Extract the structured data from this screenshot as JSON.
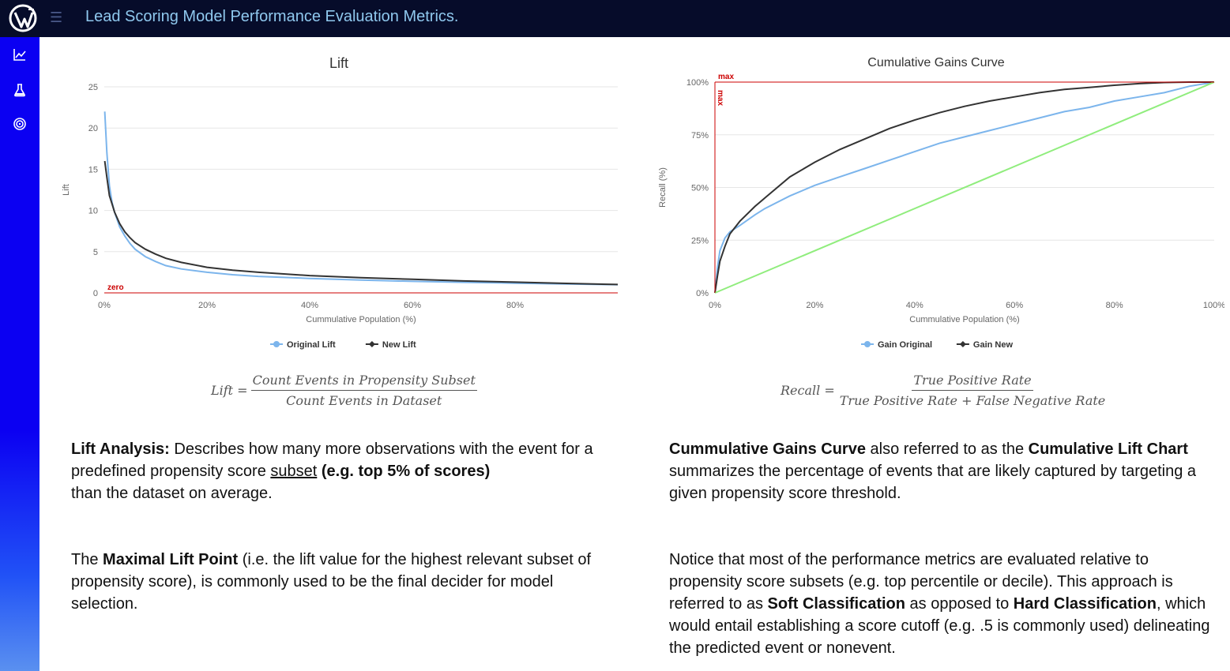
{
  "header": {
    "title": "Lead Scoring Model Performance Evaluation Metrics.",
    "menu_icon": "hamburger-menu-icon",
    "logo_icon": "app-logo-icon"
  },
  "sidebar": {
    "items": [
      {
        "icon": "line-chart-icon"
      },
      {
        "icon": "flask-icon"
      },
      {
        "icon": "target-icon"
      }
    ]
  },
  "colors": {
    "topbar": "#060c2a",
    "sidebar": "#0b00f2",
    "title": "#8fc8ee",
    "original_series": "#7cb5ec",
    "new_series": "#333333",
    "baseline": "#90ed7d",
    "reference_line": "#cc0000"
  },
  "lift_chart": {
    "chart_data": {
      "type": "line",
      "title": "Lift",
      "xlabel": "Cummulative Population (%)",
      "ylabel": "Lift",
      "xlim": [
        0,
        100
      ],
      "ylim": [
        0,
        25
      ],
      "x_ticks": [
        "0%",
        "20%",
        "40%",
        "60%",
        "80%"
      ],
      "y_ticks": [
        "0",
        "5",
        "10",
        "15",
        "20",
        "25"
      ],
      "grid": true,
      "legend_position": "bottom-center",
      "plot_line": {
        "label": "zero",
        "value": 0
      },
      "series": [
        {
          "name": "Original Lift",
          "color": "#7cb5ec",
          "x": [
            0.1,
            0.5,
            1,
            1.5,
            2,
            3,
            4,
            5,
            6,
            8,
            10,
            12,
            15,
            20,
            25,
            30,
            40,
            50,
            60,
            70,
            80,
            90,
            100
          ],
          "y": [
            22.0,
            17.0,
            13.0,
            11.0,
            9.8,
            8.0,
            6.9,
            6.0,
            5.3,
            4.4,
            3.8,
            3.3,
            2.9,
            2.5,
            2.2,
            2.0,
            1.75,
            1.55,
            1.4,
            1.28,
            1.18,
            1.08,
            1.0
          ]
        },
        {
          "name": "New Lift",
          "color": "#333333",
          "x": [
            0.1,
            0.5,
            1,
            1.5,
            2,
            3,
            4,
            5,
            6,
            8,
            10,
            12,
            15,
            20,
            25,
            30,
            40,
            50,
            60,
            70,
            80,
            90,
            100
          ],
          "y": [
            16.0,
            14.0,
            11.8,
            10.8,
            9.8,
            8.4,
            7.4,
            6.7,
            6.1,
            5.3,
            4.7,
            4.2,
            3.7,
            3.1,
            2.75,
            2.5,
            2.1,
            1.85,
            1.65,
            1.45,
            1.3,
            1.15,
            1.02
          ]
        }
      ]
    },
    "formula": {
      "lhs": "Lift =",
      "numerator": "Count Events in Propensity Subset",
      "denominator": "Count Events in Dataset"
    }
  },
  "gains_chart": {
    "chart_data": {
      "type": "line",
      "title": "Cumulative Gains Curve",
      "xlabel": "Cummulative Population (%)",
      "ylabel": "Recall (%)",
      "xlim": [
        0,
        100
      ],
      "ylim": [
        0,
        100
      ],
      "x_ticks": [
        "0%",
        "20%",
        "40%",
        "60%",
        "80%",
        "100%"
      ],
      "y_ticks": [
        "0%",
        "25%",
        "50%",
        "75%",
        "100%"
      ],
      "grid": true,
      "legend_position": "bottom-center",
      "plot_lines": [
        {
          "label": "max",
          "axis": "y",
          "value": 100
        },
        {
          "label": "max",
          "axis": "x",
          "value": 0
        }
      ],
      "series": [
        {
          "name": "Gain Original",
          "color": "#7cb5ec",
          "x": [
            0,
            0.5,
            1,
            2,
            3,
            5,
            8,
            10,
            15,
            20,
            25,
            30,
            35,
            40,
            45,
            50,
            55,
            60,
            65,
            70,
            75,
            80,
            85,
            90,
            95,
            100
          ],
          "y": [
            0,
            12,
            20,
            26,
            29,
            32,
            37,
            40,
            46,
            51,
            55,
            59,
            63,
            67,
            71,
            74,
            77,
            80,
            83,
            86,
            88,
            91,
            93,
            95,
            98,
            100
          ]
        },
        {
          "name": "Gain New",
          "color": "#333333",
          "x": [
            0,
            0.5,
            1,
            2,
            3,
            5,
            8,
            10,
            15,
            20,
            25,
            30,
            35,
            40,
            45,
            50,
            55,
            60,
            65,
            70,
            75,
            80,
            85,
            90,
            95,
            100
          ],
          "y": [
            0,
            8,
            15,
            22,
            28,
            34,
            41,
            45,
            55,
            62,
            68,
            73,
            78,
            82,
            85.5,
            88.5,
            91,
            93,
            95,
            96.5,
            97.5,
            98.5,
            99.3,
            99.8,
            100,
            100
          ]
        },
        {
          "name": "",
          "color": "#90ed7d",
          "x": [
            0,
            100
          ],
          "y": [
            0,
            100
          ]
        }
      ]
    },
    "formula": {
      "lhs": "Recall =",
      "numerator": "True Positive Rate",
      "denominator": "True Positive Rate + False Negative Rate"
    }
  },
  "lift_text": {
    "p1_bold": "Lift Analysis:",
    "p1_a": " Describes how many more observations with the event for a predefined propensity score ",
    "p1_underline": "subset",
    "p1_space": " ",
    "p1_bold2": "(e.g. top 5% of scores)",
    "p1_b": "than the dataset on average.",
    "p2_a": "The ",
    "p2_bold": "Maximal Lift Point",
    "p2_b": " (i.e. the lift value for the highest relevant subset of propensity score), is commonly used to be the final decider for model selection."
  },
  "gains_text": {
    "p1_bold": "Cummulative Gains Curve",
    "p1_a": " also referred to as the ",
    "p1_bold2": "Cumulative Lift Chart",
    "p1_b": " summarizes the percentage of events that are likely captured by targeting a given propensity score threshold.",
    "p2_a": "Notice that most of the performance metrics are evaluated relative to propensity score subsets (e.g. top percentile or decile). This approach is referred to as ",
    "p2_bold": "Soft Classification",
    "p2_b": " as opposed to ",
    "p2_bold2": "Hard Classification",
    "p2_c": ", which would entail establishing a score cutoff (e.g. .5 is commonly used) delineating the predicted event or nonevent."
  }
}
